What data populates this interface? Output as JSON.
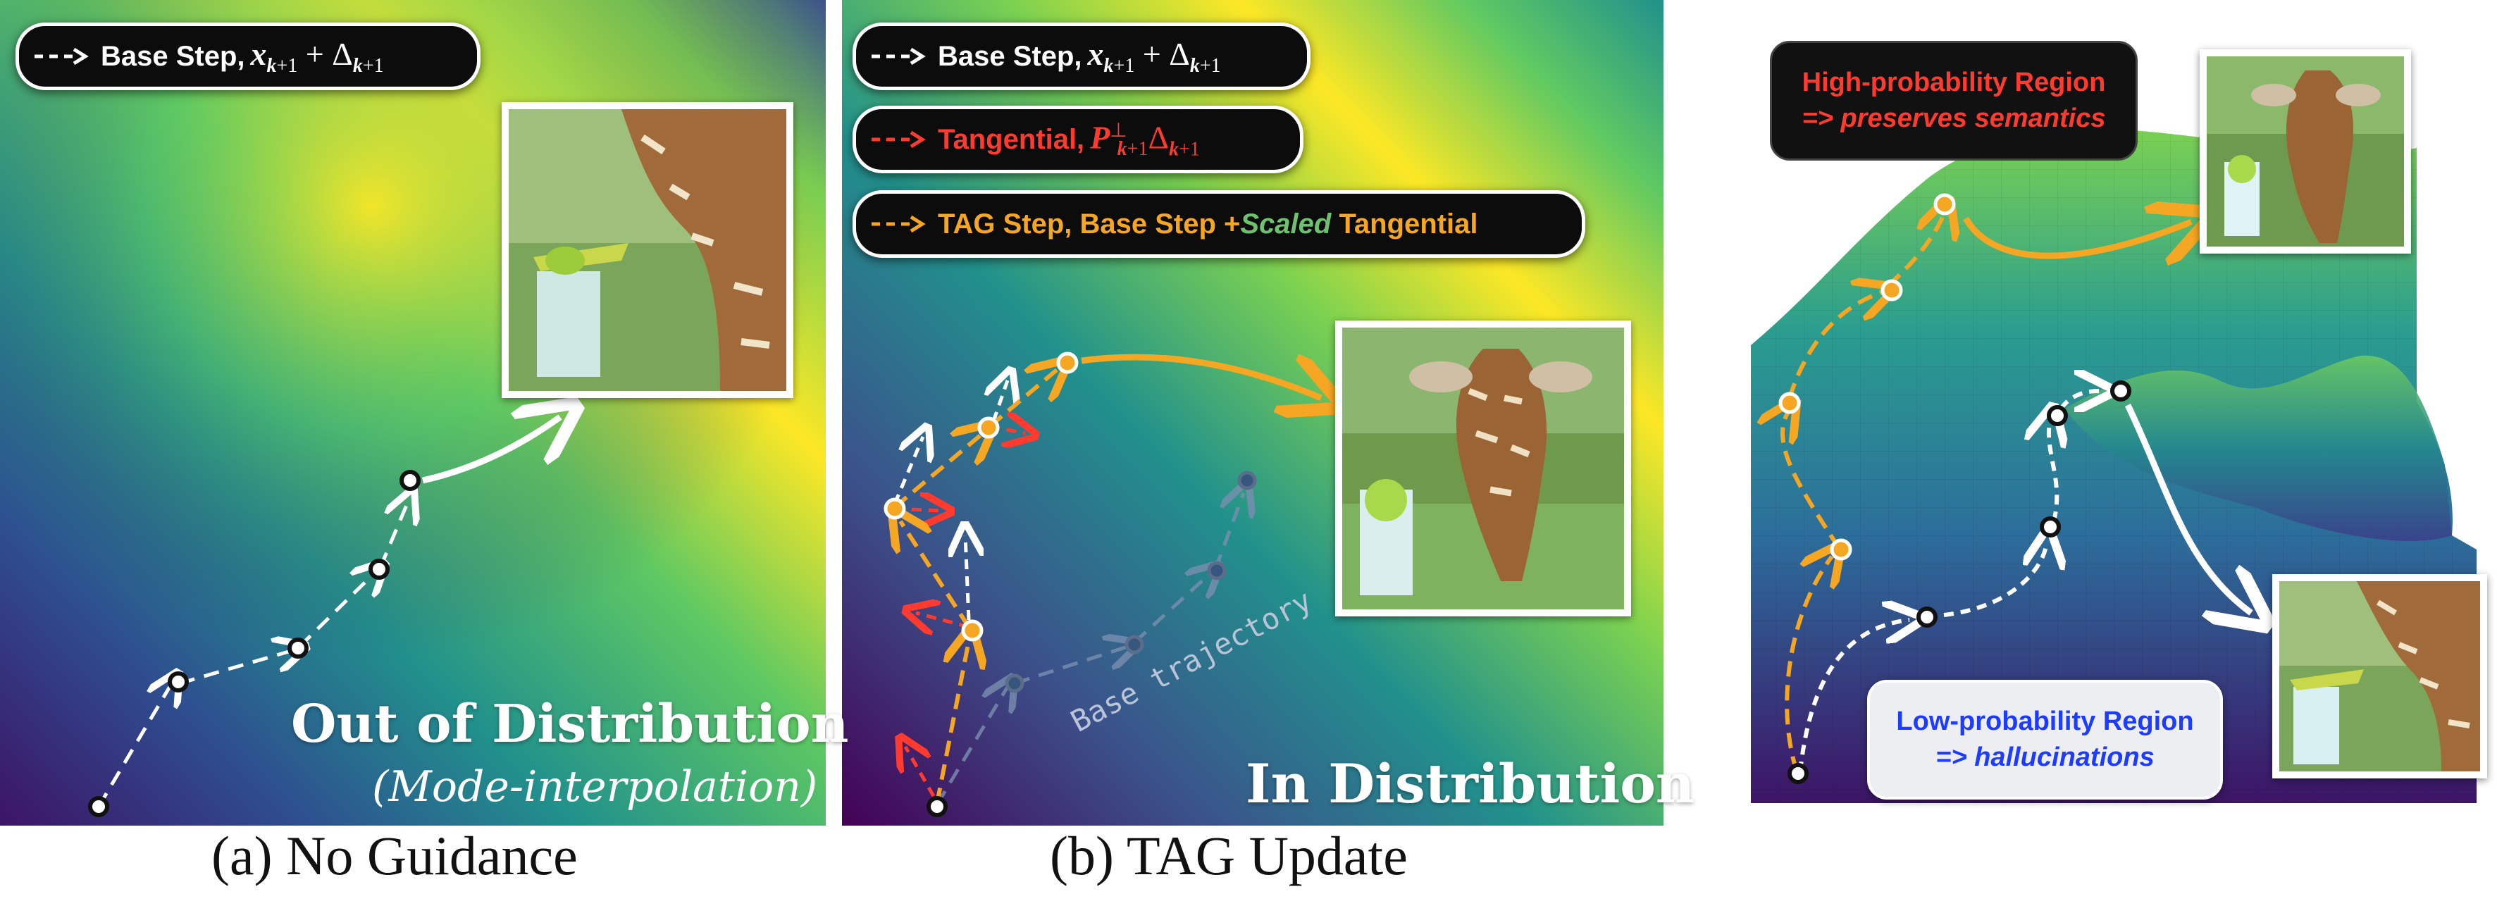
{
  "panels": {
    "a": {
      "legend_base": "Base Step,",
      "legend_math": "x",
      "label_main": "Out of Distribution",
      "label_sub": "(Mode-interpolation)",
      "caption": "(a) No Guidance"
    },
    "b": {
      "legend_base": "Base Step,",
      "legend_tangential": "Tangential,",
      "legend_tag_prefix": "TAG Step, Base Step + ",
      "legend_tag_scaled": "Scaled",
      "legend_tag_suffix": " Tangential",
      "base_trajectory_label": "Base trajectory",
      "label_main": "In Distribution",
      "caption": "(b) TAG Update"
    },
    "c": {
      "high_title": "High-probability Region",
      "high_sub": "=> preserves semantics",
      "low_title": "Low-probability Region",
      "low_sub": "=> hallucinations"
    }
  },
  "colors": {
    "base_step": "#ffffff",
    "tangential": "#ff3b30",
    "tag_step": "#f5a623",
    "scaled_text": "#6ec16e",
    "low_region_text": "#1e3cff",
    "high_region_text": "#ff3b30"
  },
  "icons": [
    "dashed-arrow-icon",
    "giraffe-photo"
  ]
}
